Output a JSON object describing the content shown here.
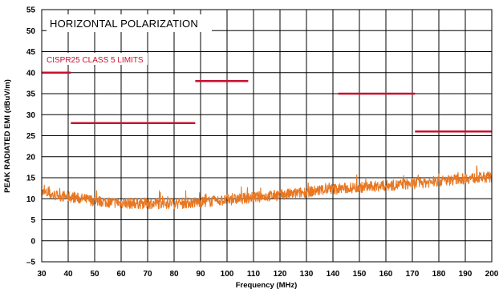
{
  "chart_data": {
    "type": "line",
    "title": "HORIZONTAL POLARIZATION",
    "annotation": "CISPR25 CLASS 5 LIMITS",
    "xlabel": "Frequency (MHz)",
    "ylabel": "PEAK RADIATED EMI (dBuV/m)",
    "xlim": [
      30,
      200
    ],
    "ylim": [
      -5,
      55
    ],
    "x_ticks": [
      30,
      40,
      50,
      60,
      70,
      80,
      90,
      100,
      110,
      120,
      130,
      140,
      150,
      160,
      170,
      180,
      190,
      200
    ],
    "y_ticks": [
      -5,
      0,
      5,
      10,
      15,
      20,
      25,
      30,
      35,
      40,
      45,
      50,
      55
    ],
    "x_tick_labels": [
      "30",
      "40",
      "50",
      "60",
      "70",
      "80",
      "90",
      "100",
      "110",
      "120",
      "130",
      "140",
      "150",
      "160",
      "170",
      "180",
      "190",
      "200"
    ],
    "y_tick_labels": [
      "–5",
      "0",
      "5",
      "10",
      "15",
      "20",
      "25",
      "30",
      "35",
      "40",
      "45",
      "50",
      "55"
    ],
    "grid": true,
    "colors": {
      "emission": "#e87722",
      "limit": "#c8102e"
    },
    "series": [
      {
        "kind": "emission",
        "x": [
          30,
          35,
          40,
          45,
          50,
          55,
          60,
          65,
          70,
          75,
          80,
          85,
          90,
          95,
          100,
          105,
          110,
          115,
          120,
          125,
          130,
          135,
          140,
          145,
          150,
          155,
          160,
          165,
          170,
          175,
          180,
          185,
          190,
          195,
          200
        ],
        "y": [
          11.5,
          10.8,
          10.5,
          10.0,
          9.5,
          9.2,
          9.0,
          8.9,
          8.9,
          8.9,
          8.9,
          9.0,
          9.2,
          9.4,
          9.7,
          10.0,
          10.3,
          10.6,
          10.9,
          11.2,
          11.6,
          12.0,
          12.3,
          12.5,
          12.7,
          12.9,
          13.1,
          13.3,
          13.6,
          13.9,
          14.2,
          14.5,
          14.8,
          15.0,
          15.2
        ]
      }
    ],
    "limits": [
      {
        "x": [
          30,
          41
        ],
        "y": 40
      },
      {
        "x": [
          41,
          88
        ],
        "y": 28
      },
      {
        "x": [
          88,
          108
        ],
        "y": 38
      },
      {
        "x": [
          142,
          171
        ],
        "y": 35
      },
      {
        "x": [
          171,
          200
        ],
        "y": 26
      }
    ]
  }
}
